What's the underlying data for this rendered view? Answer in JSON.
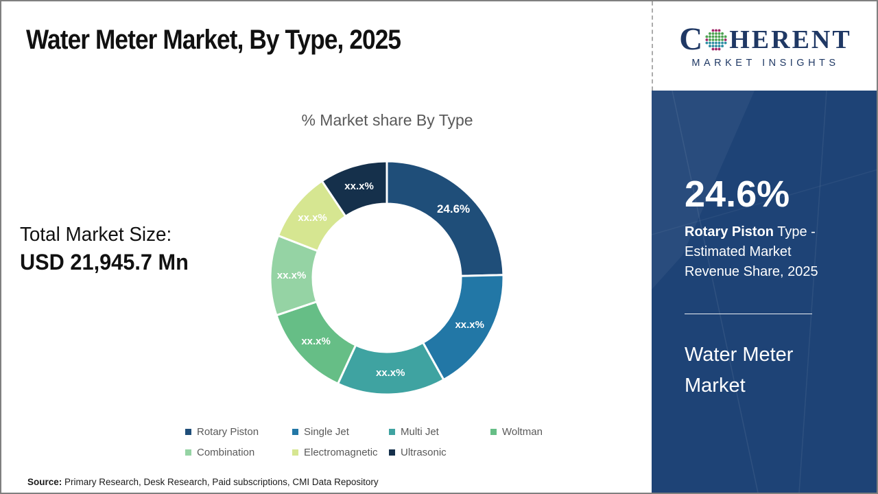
{
  "header": {
    "title": "Water Meter Market, By Type, 2025"
  },
  "logo": {
    "prefix": "C",
    "suffix": "HERENT",
    "subtitle": "MARKET INSIGHTS",
    "navy": "#1F3864"
  },
  "market_size": {
    "label": "Total Market Size:",
    "value": "USD 21,945.7 Mn"
  },
  "chart_data": {
    "type": "pie",
    "subtype": "donut",
    "title": "% Market share By Type",
    "legend_position": "bottom",
    "start_angle_deg": 0,
    "direction": "clockwise",
    "segments": [
      {
        "name": "Rotary Piston",
        "label": "24.6%",
        "percent": 24.6,
        "masked": false,
        "color": "#1F4E79"
      },
      {
        "name": "Single Jet",
        "label": "xx.x%",
        "percent": 17.3,
        "masked": true,
        "color": "#2277A6"
      },
      {
        "name": "Multi Jet",
        "label": "xx.x%",
        "percent": 15.0,
        "masked": true,
        "color": "#3FA3A1"
      },
      {
        "name": "Woltman",
        "label": "xx.x%",
        "percent": 12.9,
        "masked": true,
        "color": "#66BE86"
      },
      {
        "name": "Combination",
        "label": "xx.x%",
        "percent": 11.1,
        "masked": true,
        "color": "#95D3A4"
      },
      {
        "name": "Electromagnetic",
        "label": "xx.x%",
        "percent": 9.7,
        "masked": true,
        "color": "#D6E691"
      },
      {
        "name": "Ultrasonic",
        "label": "xx.x%",
        "percent": 9.4,
        "masked": true,
        "color": "#15304B"
      }
    ]
  },
  "sidebar": {
    "stat_value": "24.6%",
    "stat_highlight": "Rotary Piston",
    "stat_rest": " Type - Estimated Market Revenue Share, 2025",
    "market_name": "Water Meter Market",
    "bg_color": "#1E4376"
  },
  "source": {
    "label": "Source:",
    "text": " Primary Research, Desk Research, Paid subscriptions, CMI Data Repository"
  }
}
